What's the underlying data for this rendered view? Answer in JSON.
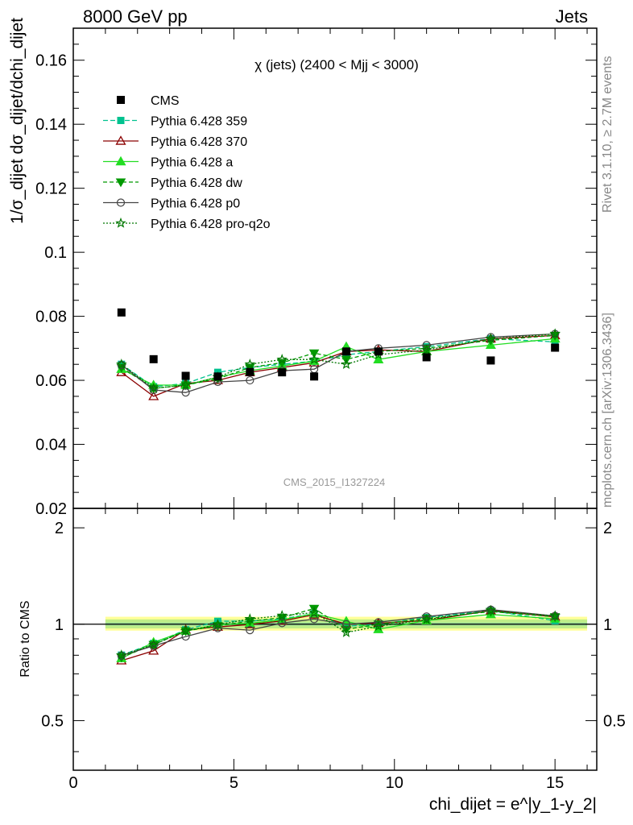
{
  "header": {
    "left": "8000 GeV pp",
    "right": "Jets"
  },
  "side_texts": {
    "rivet": "Rivet 3.1.10, ≥ 2.7M events",
    "mcplots": "mcplots.cern.ch [arXiv:1306.3436]"
  },
  "chart_data": {
    "type": "line",
    "title": "χ (jets) (2400 < Mjj < 3000)",
    "watermark": "CMS_2015_I1327224",
    "ylabel": "1/σ_dijet dσ_dijet/dchi_dijet",
    "ratio_ylabel": "Ratio to CMS",
    "xlabel": "chi_dijet = e^|y_1-y_2|",
    "xlim": [
      0,
      16.3
    ],
    "ylim": [
      0.02,
      0.17
    ],
    "ratio_ylim": [
      0.35,
      2.3
    ],
    "xticks": [
      "0",
      "5",
      "10",
      "15"
    ],
    "yticks": [
      "0.02",
      "0.04",
      "0.06",
      "0.08",
      "0.1",
      "0.12",
      "0.14",
      "0.16"
    ],
    "ratio_yticks": [
      "0.5",
      "1",
      "2"
    ],
    "legend_position": "top-left",
    "x": [
      1.5,
      2.5,
      3.5,
      4.5,
      5.5,
      6.5,
      7.5,
      8.5,
      9.5,
      11,
      13,
      15
    ],
    "data": {
      "name": "CMS",
      "values": [
        0.0812,
        0.0666,
        0.0614,
        0.0612,
        0.0626,
        0.0625,
        0.0612,
        0.069,
        0.069,
        0.0672,
        0.0662,
        0.0702
      ],
      "color": "#000000"
    },
    "series": [
      {
        "name": "Pythia 6.428 359",
        "color": "#00c28f",
        "dash": "6,3",
        "marker": "square",
        "values": [
          0.065,
          0.058,
          0.059,
          0.0625,
          0.064,
          0.065,
          0.066,
          0.068,
          0.069,
          0.0705,
          0.073,
          0.072
        ]
      },
      {
        "name": "Pythia 6.428 370",
        "color": "#8b0000",
        "dash": "",
        "marker": "triangle-open",
        "values": [
          0.0625,
          0.055,
          0.059,
          0.06,
          0.0625,
          0.064,
          0.0655,
          0.069,
          0.0695,
          0.069,
          0.073,
          0.074
        ]
      },
      {
        "name": "Pythia 6.428 a",
        "color": "#22dd22",
        "dash": "",
        "marker": "triangle",
        "values": [
          0.0635,
          0.0585,
          0.0585,
          0.061,
          0.063,
          0.0645,
          0.066,
          0.0705,
          0.0665,
          0.069,
          0.071,
          0.073
        ]
      },
      {
        "name": "Pythia 6.428 dw",
        "color": "#009900",
        "dash": "5,3",
        "marker": "triangle-down",
        "values": [
          0.064,
          0.0575,
          0.0585,
          0.0605,
          0.064,
          0.0655,
          0.0685,
          0.0665,
          0.069,
          0.07,
          0.0725,
          0.074
        ]
      },
      {
        "name": "Pythia 6.428 p0",
        "color": "#444444",
        "dash": "",
        "marker": "circle-open",
        "values": [
          0.0648,
          0.057,
          0.0562,
          0.0595,
          0.06,
          0.063,
          0.0635,
          0.069,
          0.07,
          0.071,
          0.0735,
          0.0745
        ]
      },
      {
        "name": "Pythia 6.428 pro-q2o",
        "color": "#007700",
        "dash": "2,2",
        "marker": "star",
        "values": [
          0.065,
          0.0575,
          0.0585,
          0.061,
          0.065,
          0.0665,
          0.0665,
          0.065,
          0.068,
          0.0695,
          0.073,
          0.0745
        ]
      }
    ]
  }
}
